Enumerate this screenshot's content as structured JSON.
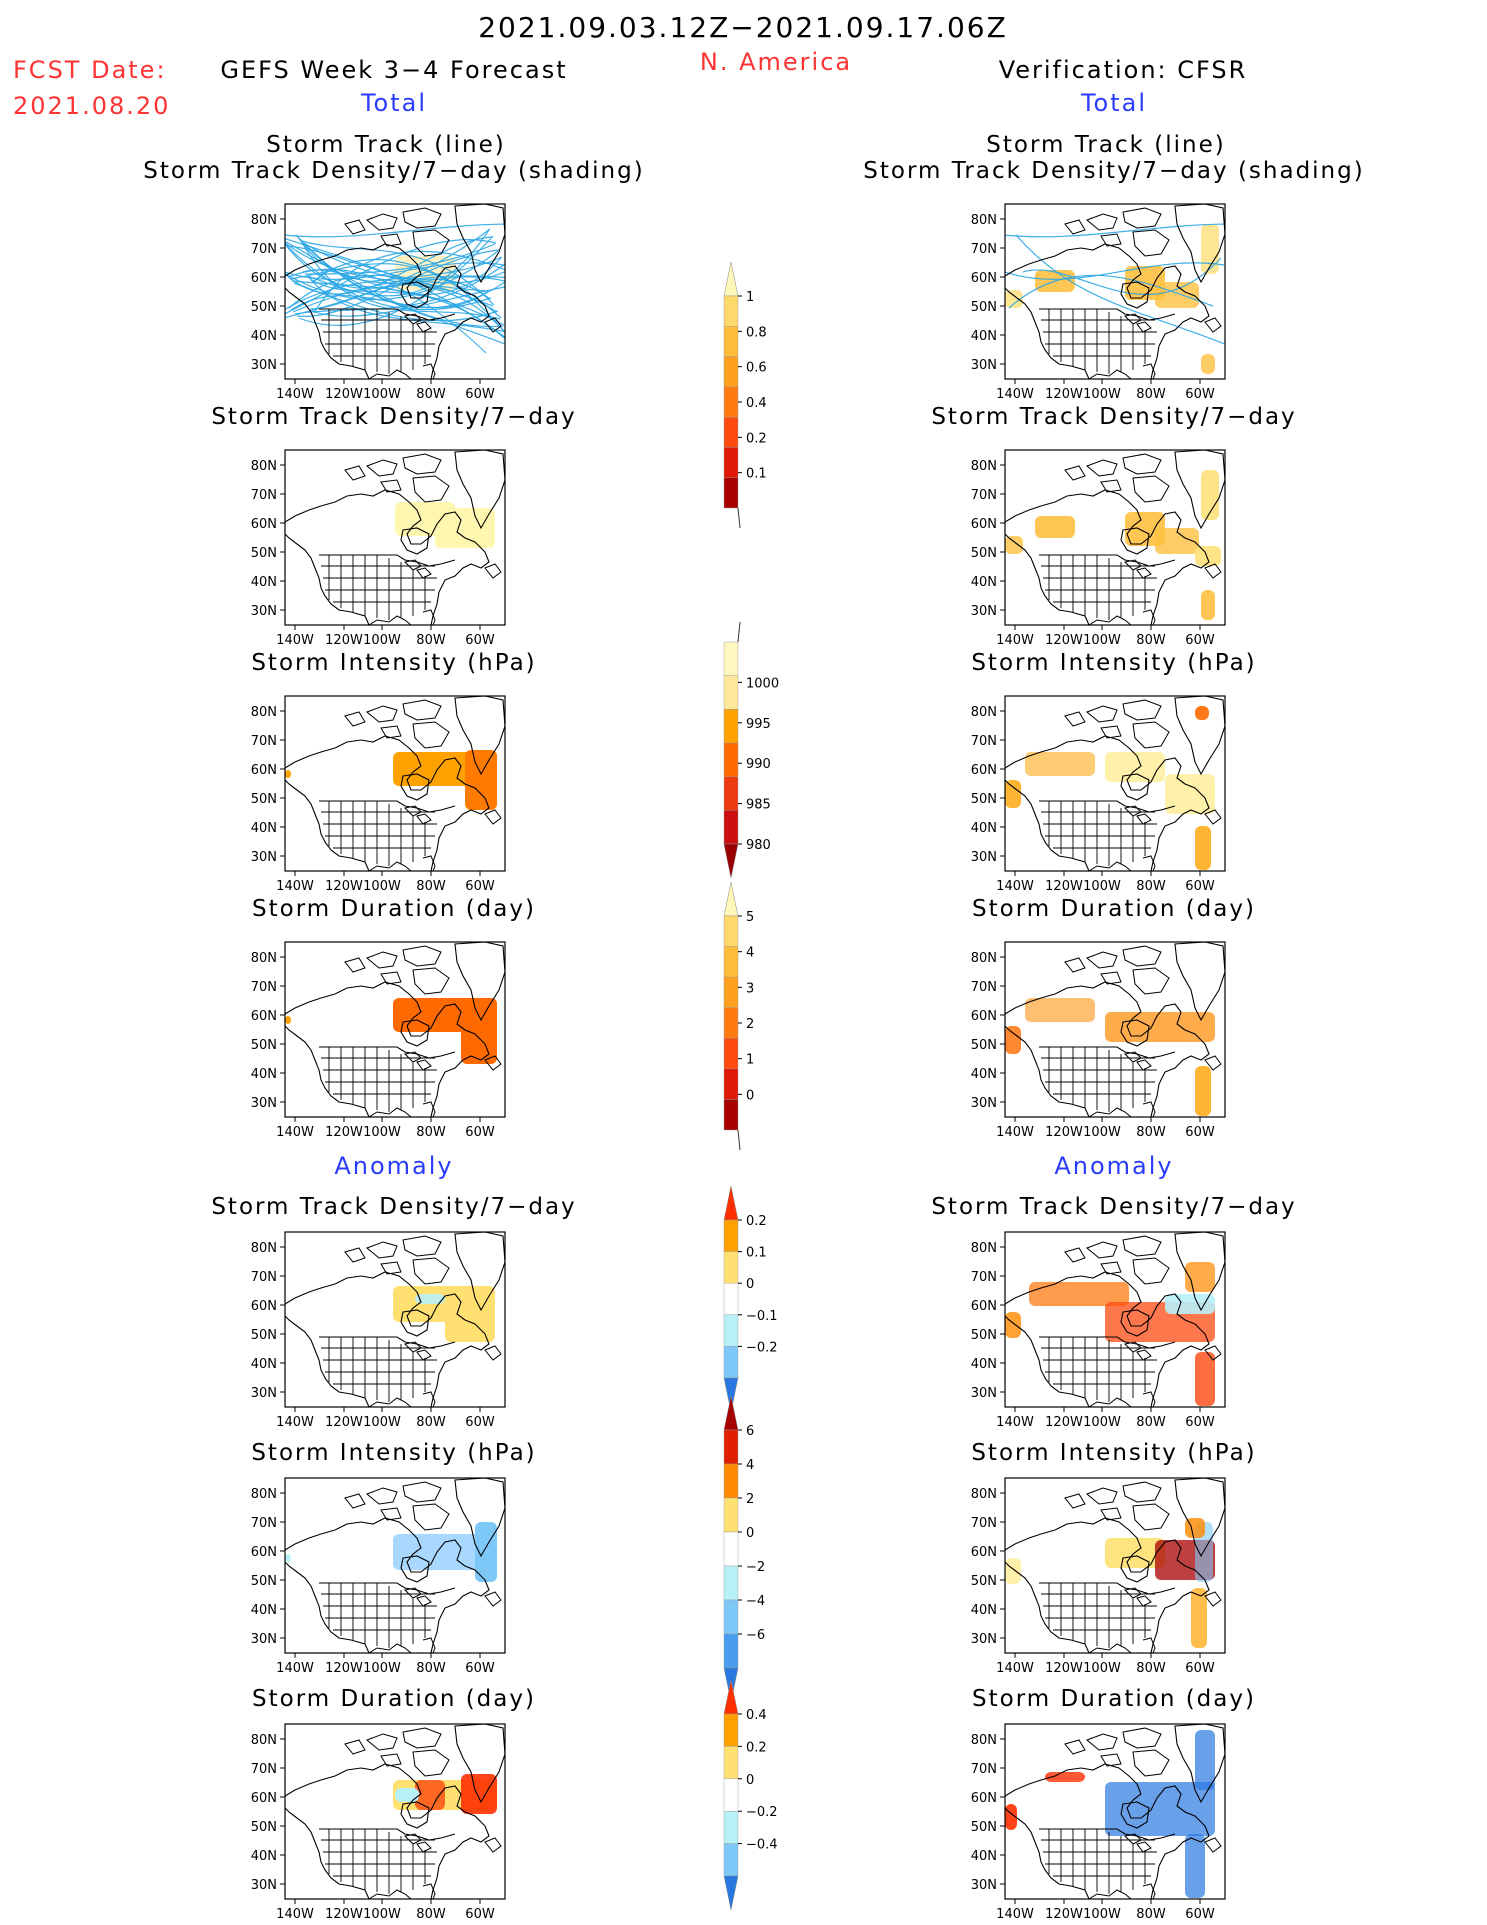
{
  "header": {
    "date_range": "2021.09.03.12Z−2021.09.17.06Z",
    "region": "N. America",
    "fcst_label": "FCST Date:",
    "fcst_date": "2021.08.20",
    "left_title": "GEFS Week 3−4 Forecast",
    "right_title": "Verification: CFSR",
    "left_total": "Total",
    "right_total": "Total",
    "left_anomaly": "Anomaly",
    "right_anomaly": "Anomaly"
  },
  "panel_titles": {
    "track_line": "Storm Track (line)",
    "track_shading": "Storm Track Density/7−day (shading)",
    "density": "Storm Track Density/7−day",
    "intensity": "Storm Intensity (hPa)",
    "duration": "Storm Duration (day)"
  },
  "axes": {
    "lat_labels": [
      "80N",
      "70N",
      "60N",
      "50N",
      "40N",
      "30N"
    ],
    "lon_labels": [
      "140W",
      "120W",
      "100W",
      "80W",
      "60W"
    ]
  },
  "colorbars": [
    {
      "id": "density_total",
      "labels": [
        "1",
        "0.8",
        "0.6",
        "0.4",
        "0.2",
        "0.1"
      ],
      "colors": [
        "#fff7b8",
        "#ffd86b",
        "#ffbd3a",
        "#ffa01e",
        "#ff7a10",
        "#ff4a10",
        "#e01808",
        "#a80000"
      ]
    },
    {
      "id": "intensity_total",
      "labels": [
        "1000",
        "995",
        "990",
        "985",
        "980"
      ],
      "colors": [
        "#fff6c0",
        "#ffe89b",
        "#ffa200",
        "#ff6a00",
        "#ee3a10",
        "#cc1010",
        "#9a0000"
      ]
    },
    {
      "id": "duration_total",
      "labels": [
        "5",
        "4",
        "3",
        "2",
        "1",
        "0"
      ],
      "colors": [
        "#fff7b8",
        "#ffd86b",
        "#ffbd3a",
        "#ffa01e",
        "#ff7a10",
        "#ff4a10",
        "#e01808",
        "#a80000"
      ]
    },
    {
      "id": "density_anom",
      "labels": [
        "0.2",
        "0.1",
        "0",
        "−0.1",
        "−0.2"
      ],
      "colors": [
        "#ff3000",
        "#ffa000",
        "#ffe070",
        "#ffffff",
        "#b8f0f8",
        "#7ec8f8",
        "#2878e0"
      ]
    },
    {
      "id": "intensity_anom",
      "labels": [
        "6",
        "4",
        "2",
        "0",
        "−2",
        "−4",
        "−6"
      ],
      "colors": [
        "#a80000",
        "#e02000",
        "#ff8a00",
        "#ffe070",
        "#ffffff",
        "#b8f0f8",
        "#7ec8f8",
        "#4a9cf0",
        "#2878e0"
      ]
    },
    {
      "id": "duration_anom",
      "labels": [
        "0.4",
        "0.2",
        "0",
        "−0.2",
        "−0.4"
      ],
      "colors": [
        "#ff3000",
        "#ffa000",
        "#ffe070",
        "#ffffff",
        "#b8f0f8",
        "#7ec8f8",
        "#2878e0"
      ]
    }
  ],
  "colors": {
    "red_text": "#ff3333",
    "blue_text": "#2a3cff",
    "track_line": "#2aa6e6"
  }
}
